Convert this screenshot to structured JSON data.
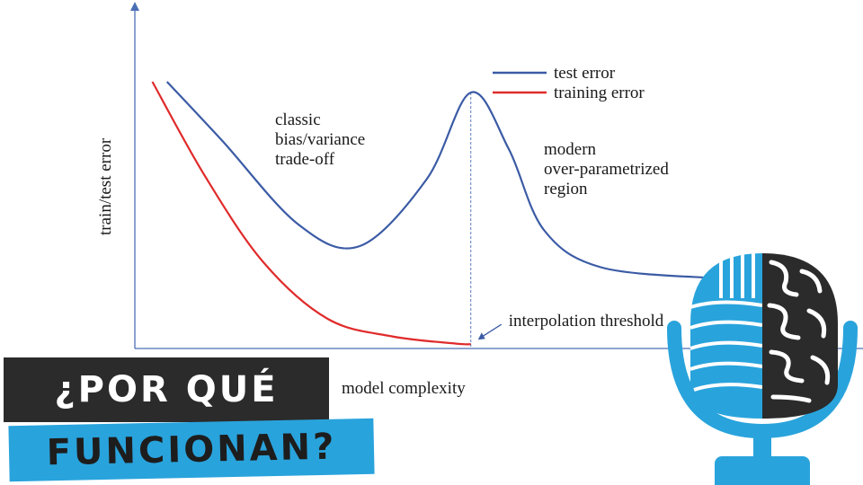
{
  "chart_data": {
    "type": "line",
    "title": "",
    "xlabel": "model complexity",
    "ylabel": "train/test error",
    "x_ticks": [],
    "y_ticks": [],
    "xlim": [
      0,
      10
    ],
    "ylim": [
      0,
      10
    ],
    "legend": {
      "placement": "top-right"
    },
    "series": [
      {
        "name": "test error",
        "color": "#3b5ba5",
        "points": [
          [
            0.55,
            9.9
          ],
          [
            1.5,
            7.7
          ],
          [
            2.8,
            4.6
          ],
          [
            3.85,
            3.8
          ],
          [
            5.0,
            6.3
          ],
          [
            5.75,
            9.5
          ],
          [
            6.4,
            7.4
          ],
          [
            7.0,
            4.4
          ],
          [
            8.0,
            3.0
          ],
          [
            10.0,
            2.6
          ]
        ]
      },
      {
        "name": "training error",
        "color": "#e02b2b",
        "points": [
          [
            0.3,
            9.9
          ],
          [
            1.2,
            6.4
          ],
          [
            2.2,
            3.2
          ],
          [
            3.3,
            1.1
          ],
          [
            4.4,
            0.45
          ],
          [
            5.5,
            0.18
          ],
          [
            5.75,
            0.16
          ]
        ]
      }
    ],
    "annotations": [
      {
        "text_lines": [
          "classic",
          "bias/variance",
          "trade-off"
        ],
        "x": 2.4,
        "y": 8.3
      },
      {
        "text_lines": [
          "modern",
          "over-parametrized",
          "region"
        ],
        "x": 7.0,
        "y": 7.2
      },
      {
        "text": "interpolation threshold",
        "x": 5.75,
        "y": 0.16,
        "arrow": true
      }
    ],
    "vertical_line_x": 5.75,
    "grid": false
  },
  "banner": {
    "line1": "¿POR QUÉ",
    "line2": "FUNCIONAN?"
  },
  "colors": {
    "banner_dark": "#2b2b2b",
    "banner_blue": "#29a3dc",
    "mic_blue": "#29a3dc",
    "brain_dark": "#2b2b2b"
  },
  "icons": {
    "mic": "microphone-brain-icon"
  }
}
